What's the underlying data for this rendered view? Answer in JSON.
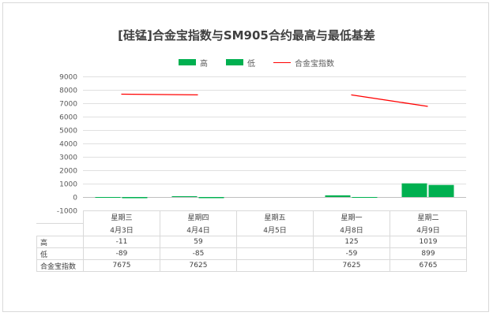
{
  "chart_data": {
    "type": "bar",
    "title": "[硅锰]合金宝指数与SM905合约最高与最低基差",
    "categories": [
      {
        "day": "星期三",
        "date": "4月3日"
      },
      {
        "day": "星期四",
        "date": "4月4日"
      },
      {
        "day": "星期五",
        "date": "4月5日"
      },
      {
        "day": "星期一",
        "date": "4月8日"
      },
      {
        "day": "星期二",
        "date": "4月9日"
      }
    ],
    "series": [
      {
        "name": "高",
        "kind": "bar",
        "color": "#00b050",
        "values": [
          -11,
          59,
          null,
          125,
          1019
        ],
        "labels": [
          "-11",
          "59",
          "",
          "125",
          "1019"
        ]
      },
      {
        "name": "低",
        "kind": "bar",
        "color": "#00b050",
        "values": [
          -89,
          -85,
          null,
          -59,
          899
        ],
        "labels": [
          "-89",
          "-85",
          "",
          "-59",
          "899"
        ]
      },
      {
        "name": "合金宝指数",
        "kind": "line",
        "color": "#ff0000",
        "values": [
          7675,
          7625,
          null,
          7625,
          6765
        ],
        "labels": [
          "7675",
          "7625",
          "",
          "7625",
          "6765"
        ]
      }
    ],
    "ylim": [
      -1000,
      9000
    ],
    "yticks": [
      -1000,
      0,
      1000,
      2000,
      3000,
      4000,
      5000,
      6000,
      7000,
      8000,
      9000
    ],
    "grid": true,
    "legend": "top",
    "data_table": true
  }
}
